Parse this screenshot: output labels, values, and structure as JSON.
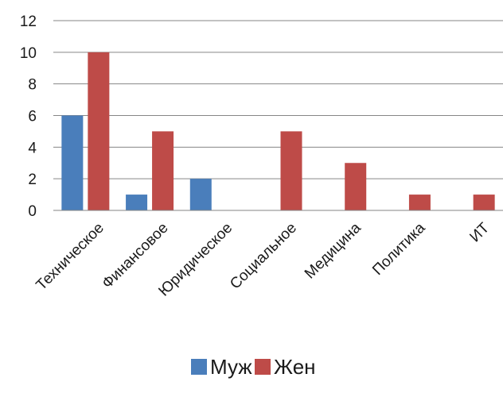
{
  "chart_data": {
    "type": "bar",
    "categories": [
      "Техническое",
      "Финансовое",
      "Юридическое",
      "Социальное",
      "Медицина",
      "Политика",
      "ИТ"
    ],
    "series": [
      {
        "name": "Муж",
        "color": "#4a7ebb",
        "values": [
          6,
          1,
          2,
          0,
          0,
          0,
          0
        ]
      },
      {
        "name": "Жен",
        "color": "#be4b48",
        "values": [
          10,
          5,
          0,
          5,
          3,
          1,
          1
        ]
      }
    ],
    "ylim": [
      0,
      12
    ],
    "yticks": [
      0,
      2,
      4,
      6,
      8,
      10,
      12
    ],
    "grid": true,
    "legend": "bottom"
  }
}
